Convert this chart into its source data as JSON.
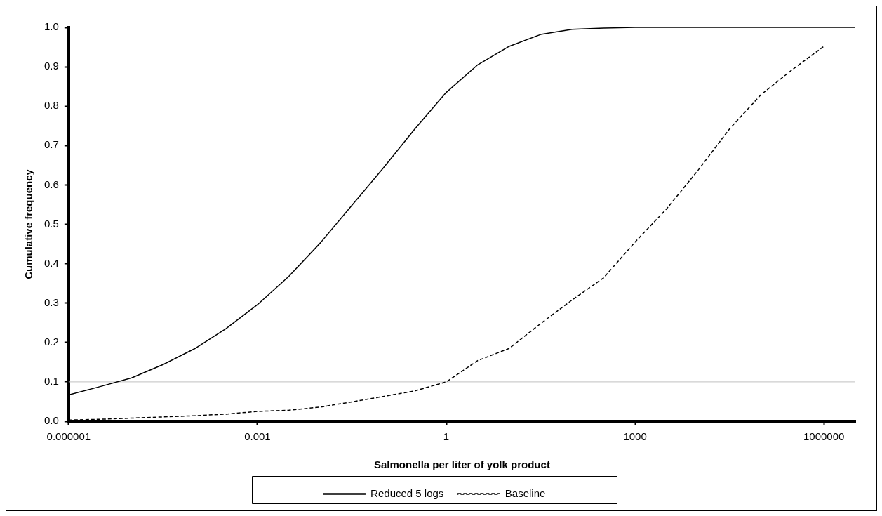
{
  "chart_data": {
    "type": "line",
    "xlabel": "Salmonella per liter of yolk product",
    "ylabel": "Cumulative frequency",
    "log": "x",
    "xlim": [
      1e-06,
      3162278
    ],
    "xticks": [
      {
        "value": 1e-06,
        "label": "0.000001"
      },
      0.001,
      1,
      1000,
      1000000
    ],
    "ylim": [
      0,
      1
    ],
    "yticks": [
      {
        "value": 0,
        "label": "0.0"
      },
      {
        "value": 0.1,
        "label": "0.1"
      },
      {
        "value": 0.2,
        "label": "0.2"
      },
      {
        "value": 0.3,
        "label": "0.3"
      },
      {
        "value": 0.4,
        "label": "0.4"
      },
      {
        "value": 0.5,
        "label": "0.5"
      },
      {
        "value": 0.6,
        "label": "0.6"
      },
      {
        "value": 0.7,
        "label": "0.7"
      },
      {
        "value": 0.8,
        "label": "0.8"
      },
      {
        "value": 0.9,
        "label": "0.9"
      },
      {
        "value": 1,
        "label": "1.0"
      }
    ],
    "grid": false,
    "legend": "bottom",
    "ref_lines": [
      {
        "axis": "y",
        "value": 0.1,
        "color": "#c0c0c0"
      }
    ],
    "series": [
      {
        "name": "Reduced 5 logs",
        "color": "#000000",
        "line_style": "solid",
        "x": [
          1e-06,
          3.162e-06,
          1e-05,
          3.162e-05,
          0.0001,
          0.0003162,
          0.001,
          0.003162,
          0.01,
          0.03162,
          0.1,
          0.3162,
          1,
          3.162,
          10,
          31.62,
          100,
          316.2,
          1000,
          3162,
          10000,
          31623,
          100000,
          316228,
          1000000,
          3162278
        ],
        "values": [
          0.067,
          0.088,
          0.11,
          0.144,
          0.184,
          0.235,
          0.296,
          0.368,
          0.453,
          0.548,
          0.643,
          0.742,
          0.835,
          0.905,
          0.952,
          0.982,
          0.995,
          0.998,
          1,
          1,
          1,
          1,
          1,
          1,
          1,
          1
        ]
      },
      {
        "name": "Baseline",
        "color": "#000000",
        "line_style": "dashed",
        "x": [
          1e-06,
          3.162e-06,
          1e-05,
          3.162e-05,
          0.0001,
          0.0003162,
          0.001,
          0.003162,
          0.01,
          0.03162,
          0.1,
          0.3162,
          1,
          3.162,
          10,
          31.62,
          100,
          316.2,
          1000,
          3162,
          10000,
          31623,
          100000,
          316228,
          1000000
        ],
        "values": [
          0.003,
          0.005,
          0.008,
          0.011,
          0.014,
          0.018,
          0.025,
          0.028,
          0.036,
          0.049,
          0.063,
          0.077,
          0.1,
          0.154,
          0.185,
          0.248,
          0.308,
          0.364,
          0.455,
          0.539,
          0.637,
          0.742,
          0.829,
          0.893,
          0.952
        ]
      }
    ]
  }
}
